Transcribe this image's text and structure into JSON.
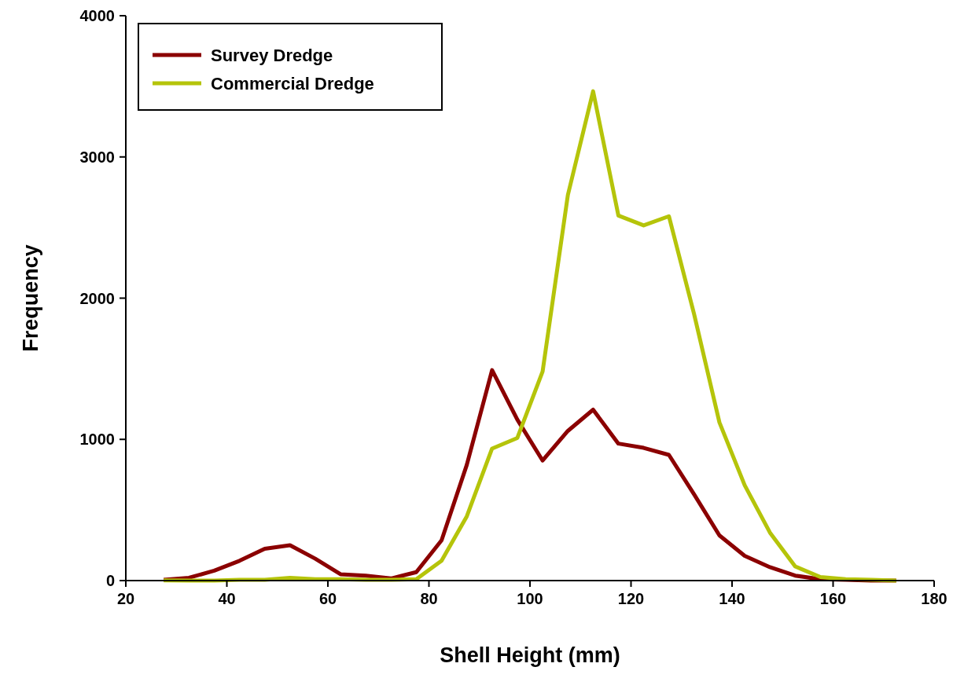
{
  "chart_data": {
    "type": "line",
    "xlabel": "Shell Height (mm)",
    "ylabel": "Frequency",
    "x": [
      27.5,
      32.5,
      37.5,
      42.5,
      47.5,
      52.5,
      57.5,
      62.5,
      67.5,
      72.5,
      77.5,
      82.5,
      87.5,
      92.5,
      97.5,
      102.5,
      107.5,
      112.5,
      117.5,
      122.5,
      127.5,
      132.5,
      137.5,
      142.5,
      147.5,
      152.5,
      157.5,
      162.5,
      167.5,
      172.5
    ],
    "series": [
      {
        "name": "Survey Dredge",
        "color": "#8b0000",
        "values": [
          5,
          20,
          70,
          140,
          225,
          250,
          155,
          45,
          35,
          15,
          60,
          285,
          820,
          1490,
          1140,
          850,
          1060,
          1210,
          970,
          940,
          890,
          610,
          320,
          175,
          95,
          35,
          10,
          5,
          0,
          0
        ]
      },
      {
        "name": "Commercial Dredge",
        "color": "#b5c40a",
        "values": [
          2,
          0,
          0,
          5,
          5,
          20,
          10,
          10,
          5,
          5,
          10,
          140,
          455,
          935,
          1010,
          1480,
          2730,
          3465,
          2585,
          2515,
          2580,
          1885,
          1120,
          675,
          340,
          100,
          25,
          10,
          5,
          0
        ]
      }
    ],
    "xlim": [
      20,
      180
    ],
    "xticks": [
      20,
      40,
      60,
      80,
      100,
      120,
      140,
      160,
      180
    ],
    "ylim": [
      0,
      4000
    ],
    "yticks": [
      0,
      1000,
      2000,
      3000,
      4000
    ],
    "grid": false,
    "legend": "top left",
    "marker": "none",
    "line_style": "solid"
  }
}
